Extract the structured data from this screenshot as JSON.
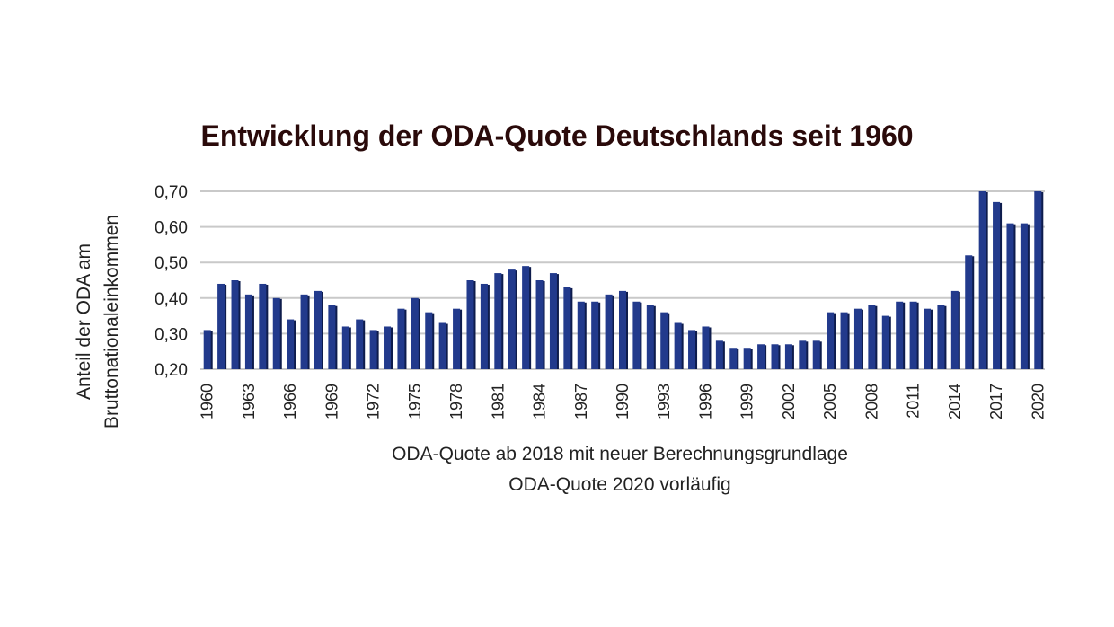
{
  "chart_data": {
    "type": "bar",
    "title": "Entwicklung der ODA-Quote Deutschlands seit 1960",
    "ylabel_lines": [
      "Anteil der ODA am",
      "Bruttonationaleinkommen"
    ],
    "xlabel_lines": [
      "ODA-Quote ab 2018 mit neuer Berechnungsgrundlage",
      "ODA-Quote 2020 vorläufig"
    ],
    "ylim": [
      0.2,
      0.7
    ],
    "yticks": [
      "0,20",
      "0,30",
      "0,40",
      "0,50",
      "0,60",
      "0,70"
    ],
    "ytick_values": [
      0.2,
      0.3,
      0.4,
      0.5,
      0.6,
      0.7
    ],
    "grid": true,
    "legend": "none",
    "bar_color": "#223a8c",
    "categories": [
      1960,
      1961,
      1962,
      1963,
      1964,
      1965,
      1966,
      1967,
      1968,
      1969,
      1970,
      1971,
      1972,
      1973,
      1974,
      1975,
      1976,
      1977,
      1978,
      1979,
      1980,
      1981,
      1982,
      1983,
      1984,
      1985,
      1986,
      1987,
      1988,
      1989,
      1990,
      1991,
      1992,
      1993,
      1994,
      1995,
      1996,
      1997,
      1998,
      1999,
      2000,
      2001,
      2002,
      2003,
      2004,
      2005,
      2006,
      2007,
      2008,
      2009,
      2010,
      2011,
      2012,
      2013,
      2014,
      2015,
      2016,
      2017,
      2018,
      2019,
      2020
    ],
    "values": [
      0.31,
      0.44,
      0.45,
      0.41,
      0.44,
      0.4,
      0.34,
      0.41,
      0.42,
      0.38,
      0.32,
      0.34,
      0.31,
      0.32,
      0.37,
      0.4,
      0.36,
      0.33,
      0.37,
      0.45,
      0.44,
      0.47,
      0.48,
      0.49,
      0.45,
      0.47,
      0.43,
      0.39,
      0.39,
      0.41,
      0.42,
      0.39,
      0.38,
      0.36,
      0.33,
      0.31,
      0.32,
      0.28,
      0.26,
      0.26,
      0.27,
      0.27,
      0.27,
      0.28,
      0.28,
      0.36,
      0.36,
      0.37,
      0.38,
      0.35,
      0.39,
      0.39,
      0.37,
      0.38,
      0.42,
      0.52,
      0.7,
      0.67,
      0.61,
      0.61,
      0.7
    ],
    "xtick_labels": [
      "1960",
      "1963",
      "1966",
      "1969",
      "1972",
      "1975",
      "1978",
      "1981",
      "1984",
      "1987",
      "1990",
      "1993",
      "1996",
      "1999",
      "2002",
      "2005",
      "2008",
      "2011",
      "2014",
      "2017",
      "2020"
    ]
  }
}
